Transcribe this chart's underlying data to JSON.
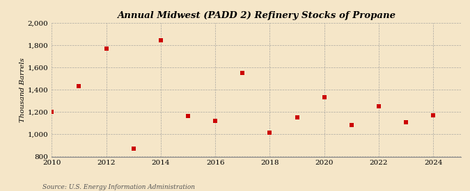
{
  "title": "Annual Midwest (PADD 2) Refinery Stocks of Propane",
  "ylabel": "Thousand Barrels",
  "source": "Source: U.S. Energy Information Administration",
  "background_color": "#f5e6c8",
  "plot_bg_color": "#f5e6c8",
  "marker_color": "#cc0000",
  "marker": "s",
  "marker_size": 4,
  "xlim": [
    2010,
    2025
  ],
  "ylim": [
    800,
    2000
  ],
  "yticks": [
    800,
    1000,
    1200,
    1400,
    1600,
    1800,
    2000
  ],
  "xticks": [
    2010,
    2012,
    2014,
    2016,
    2018,
    2020,
    2022,
    2024
  ],
  "years": [
    2010,
    2011,
    2012,
    2013,
    2014,
    2015,
    2016,
    2017,
    2018,
    2019,
    2020,
    2021,
    2022,
    2023,
    2024
  ],
  "values": [
    1200,
    1430,
    1770,
    870,
    1845,
    1165,
    1120,
    1550,
    1015,
    1150,
    1335,
    1085,
    1250,
    1110,
    1170
  ]
}
